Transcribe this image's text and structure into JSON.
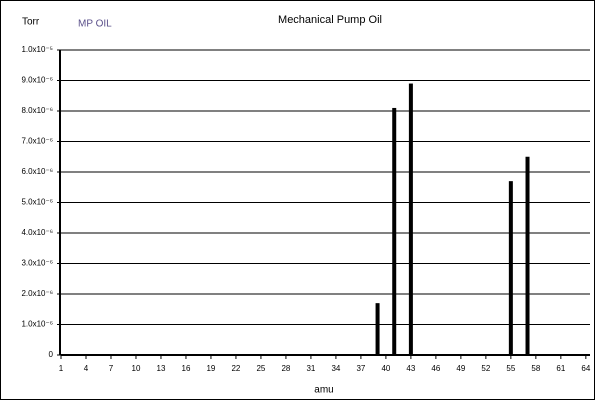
{
  "chart_data": {
    "type": "bar",
    "title": "Mechanical Pump Oil",
    "y_label": "Torr",
    "series_label": "MP OIL",
    "x_label": "amu",
    "x": [
      39,
      41,
      43,
      55,
      57
    ],
    "values": [
      1.7e-06,
      8.1e-06,
      8.9e-06,
      5.7e-06,
      6.5e-06
    ],
    "color": "#000000",
    "xlim": [
      1,
      64.5
    ],
    "xticks": [
      1,
      4,
      7,
      10,
      13,
      16,
      19,
      22,
      25,
      28,
      31,
      34,
      37,
      40,
      43,
      46,
      49,
      52,
      55,
      58,
      61,
      64
    ],
    "ylim": [
      0,
      1e-05
    ],
    "yticks": [
      0,
      {
        "value": 1e-06,
        "label": "1.0x10⁻⁶"
      },
      {
        "value": 2e-06,
        "label": "2.0x10⁻⁶"
      },
      {
        "value": 3e-06,
        "label": "3.0x10⁻⁶"
      },
      {
        "value": 4e-06,
        "label": "4.0x10⁻⁶"
      },
      {
        "value": 5e-06,
        "label": "5.0x10⁻⁶"
      },
      {
        "value": 6e-06,
        "label": "6.0x10⁻⁶"
      },
      {
        "value": 7e-06,
        "label": "7.0x10⁻⁶"
      },
      {
        "value": 8e-06,
        "label": "8.0x10⁻⁶"
      },
      {
        "value": 9e-06,
        "label": "9.0x10⁻⁶"
      },
      {
        "value": 1e-05,
        "label": "1.0x10⁻⁵"
      }
    ],
    "grid": true
  }
}
